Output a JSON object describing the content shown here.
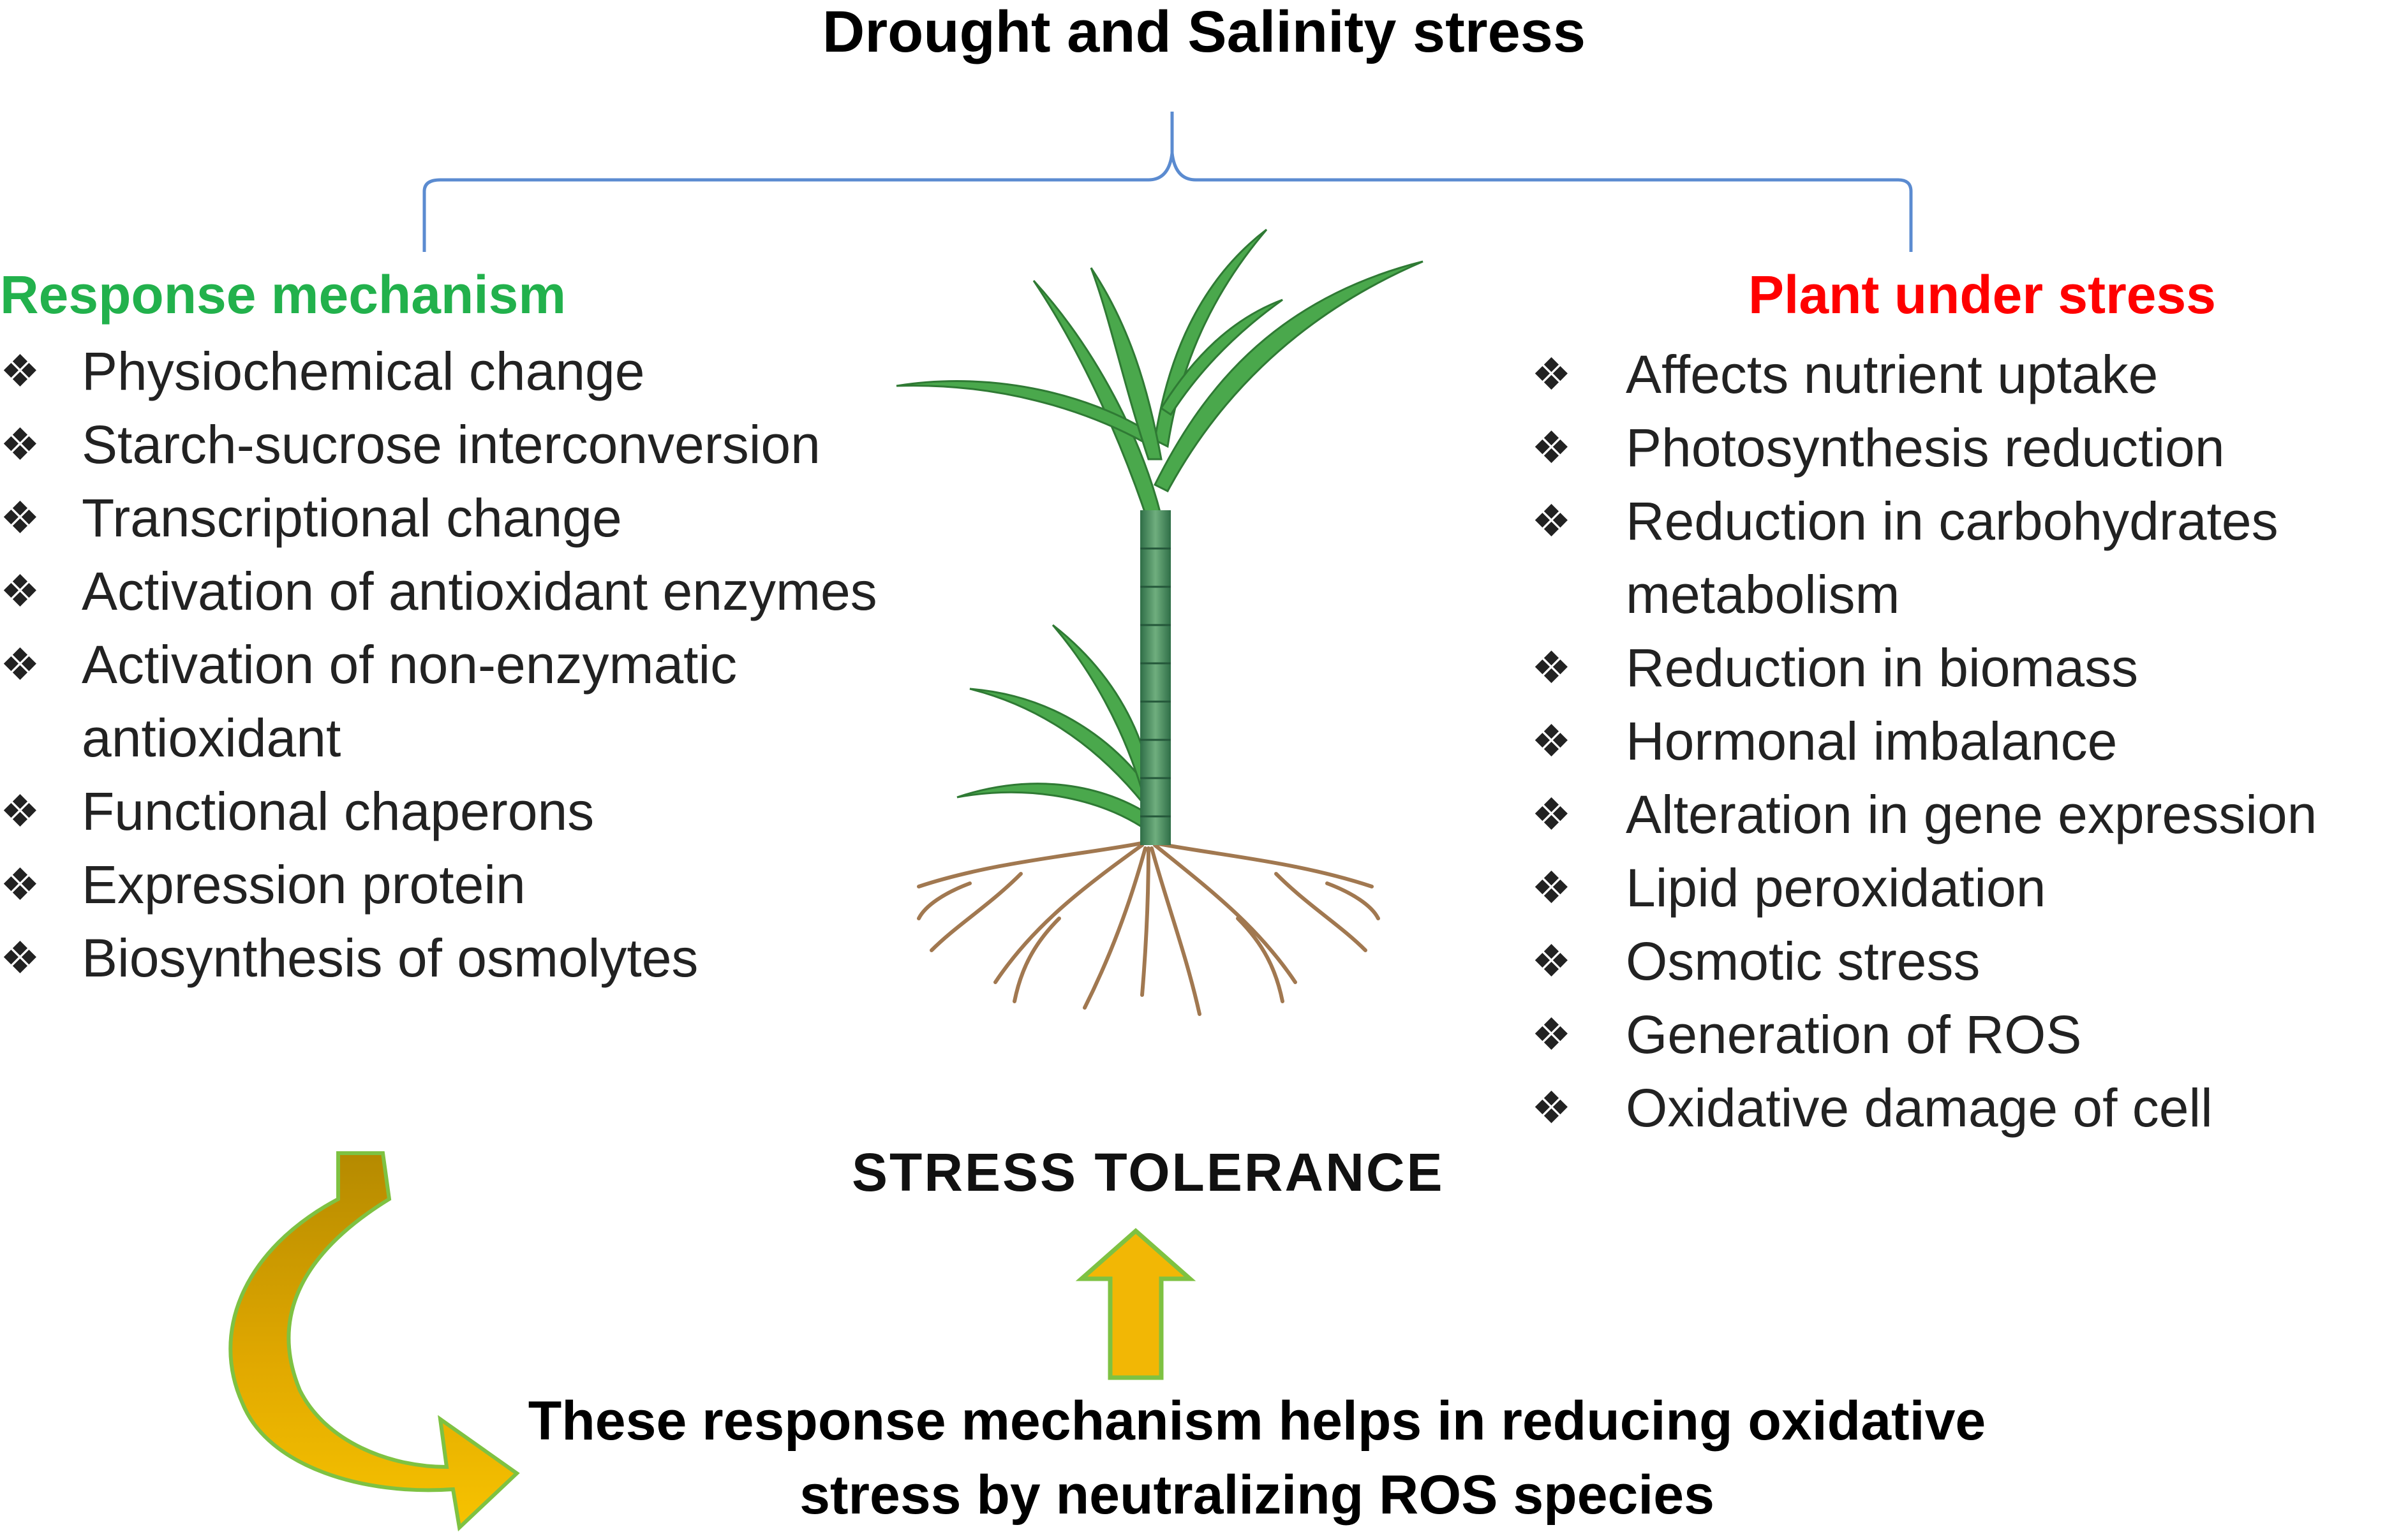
{
  "title": "Drought and Salinity stress",
  "left_heading": "Response mechanism",
  "right_heading": "Plant under stress",
  "left_items": [
    "Physiochemical change",
    "Starch-sucrose interconversion",
    "Transcriptional change",
    "Activation of antioxidant enzymes",
    "Activation of  non-enzymatic antioxidant",
    "Functional chaperons",
    "Expression protein",
    "Biosynthesis of osmolytes"
  ],
  "right_items": [
    "Affects nutrient uptake",
    "Photosynthesis reduction",
    "Reduction in carbohydrates metabolism",
    "Reduction in biomass",
    "Hormonal imbalance",
    "Alteration in gene expression",
    "Lipid peroxidation",
    "Osmotic stress",
    "Generation of ROS",
    "Oxidative damage of cell"
  ],
  "bullet_glyph": "❖",
  "center_label": "STRESS TOLERANCE",
  "bottom_text": "These response mechanism helps in reducing oxidative stress by neutralizing ROS species",
  "colors": {
    "left_heading": "#22b14c",
    "right_heading": "#ff0000",
    "brace": "#5b8bd0",
    "arrow_fill": "#f2b705",
    "arrow_outline": "#7ec242",
    "stem": "#4a8f62",
    "leaf": "#4aa84c",
    "root": "#a17850"
  }
}
